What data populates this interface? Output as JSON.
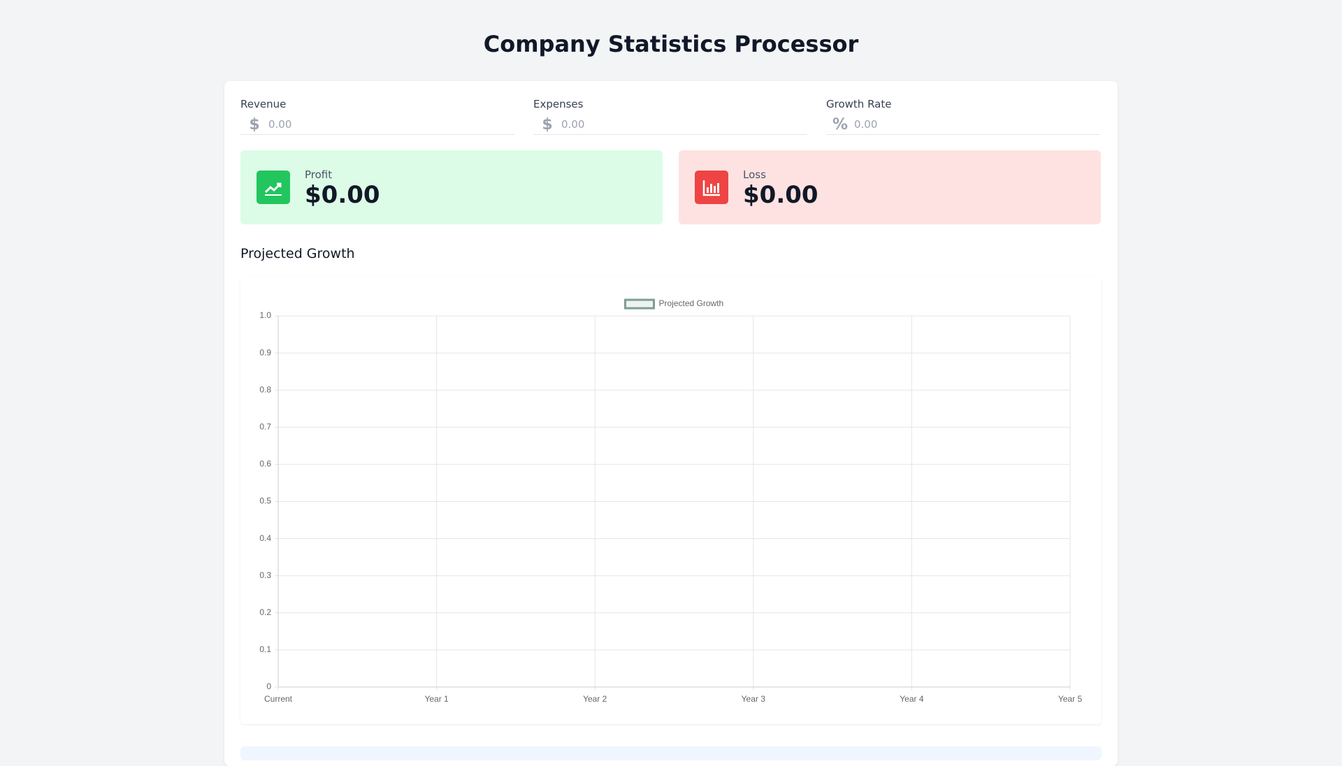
{
  "header": {
    "title": "Company Statistics Processor"
  },
  "inputs": [
    {
      "label": "Revenue",
      "icon": "$",
      "placeholder": "0.00"
    },
    {
      "label": "Expenses",
      "icon": "$",
      "placeholder": "0.00"
    },
    {
      "label": "Growth Rate",
      "icon": "%",
      "placeholder": "0.00"
    }
  ],
  "cards": [
    {
      "label": "Profit",
      "value": "$0.00"
    },
    {
      "label": "Loss",
      "value": "$0.00"
    }
  ],
  "section": {
    "title": "Projected Growth"
  },
  "chart_data": {
    "type": "line",
    "categories": [
      "Current",
      "Year 1",
      "Year 2",
      "Year 3",
      "Year 4",
      "Year 5"
    ],
    "series": [
      {
        "name": "Projected Growth",
        "color": "#7f9c96",
        "values": [
          null,
          null,
          null,
          null,
          null,
          null
        ]
      }
    ],
    "ylim": [
      0,
      1
    ],
    "yticks": [
      0,
      0.1,
      0.2,
      0.3,
      0.4,
      0.5,
      0.6,
      0.7,
      0.8,
      0.9,
      {
        "value": 1,
        "label": "1.0"
      }
    ],
    "grid": true,
    "legend": "top"
  }
}
